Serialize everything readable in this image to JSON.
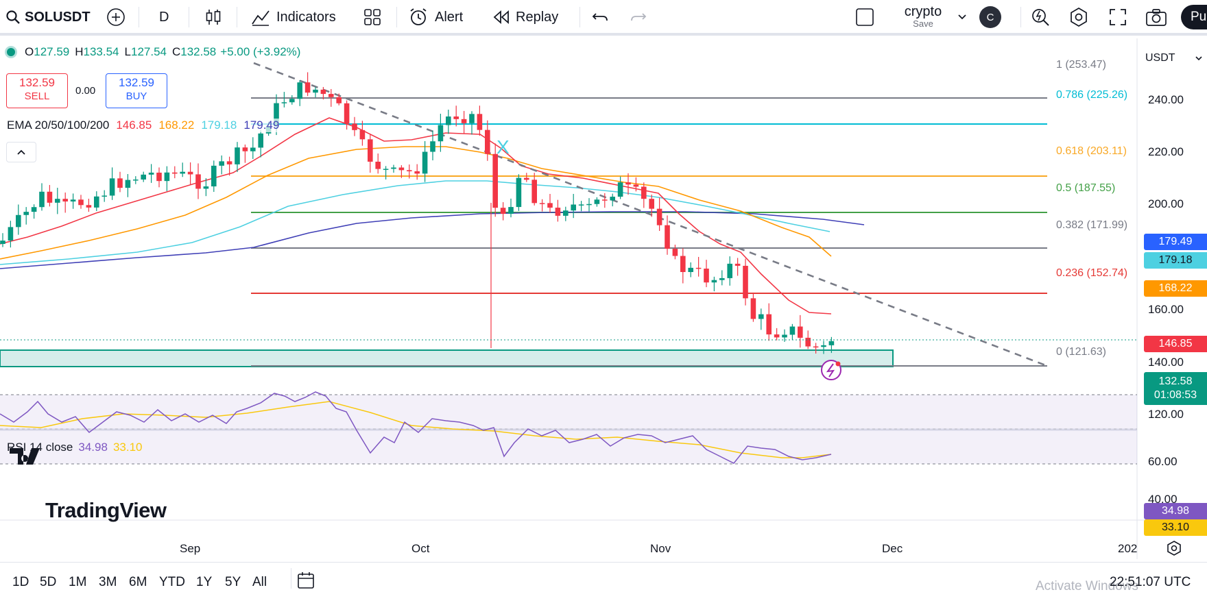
{
  "toolbar": {
    "symbol": "SOLUSDT",
    "interval": "D",
    "indicators_label": "Indicators",
    "alert_label": "Alert",
    "replay_label": "Replay",
    "layout_name": "crypto",
    "layout_save": "Save",
    "avatar_letter": "C",
    "publish_label": "Pu"
  },
  "legend": {
    "o_label": "O",
    "o": "127.59",
    "h_label": "H",
    "h": "133.54",
    "l_label": "L",
    "l": "127.54",
    "c_label": "C",
    "c": "132.58",
    "change": "+5.00 (+3.92%)",
    "sell_price": "132.59",
    "sell_label": "SELL",
    "spread": "0.00",
    "buy_price": "132.59",
    "buy_label": "BUY",
    "ema_title": "EMA 20/50/100/200",
    "ema20": "146.85",
    "ema50": "168.22",
    "ema100": "179.18",
    "ema200": "179.49"
  },
  "currency": "USDT",
  "price_axis": [
    "240.00",
    "220.00",
    "200.00",
    "160.00",
    "140.00",
    "120.00"
  ],
  "fib_levels": [
    {
      "label": "1 (253.47)",
      "color": "#787b86"
    },
    {
      "label": "0.786 (225.26)",
      "color": "#00bcd4"
    },
    {
      "label": "0.618 (203.11)",
      "color": "#f9a825"
    },
    {
      "label": "0.5 (187.55)",
      "color": "#43a047"
    },
    {
      "label": "0.382 (171.99)",
      "color": "#787b86"
    },
    {
      "label": "0.236 (152.74)",
      "color": "#e53935"
    },
    {
      "label": "0 (121.63)",
      "color": "#787b86"
    }
  ],
  "price_tags": {
    "ema200": "179.49",
    "ema100": "179.18",
    "ema50": "168.22",
    "ema20": "146.85",
    "last": "132.58",
    "countdown": "01:08:53"
  },
  "rsi": {
    "title": "RSI 14 close",
    "value": "34.98",
    "ma": "33.10",
    "axis": [
      "60.00",
      "40.00"
    ]
  },
  "time_axis": [
    "Sep",
    "Oct",
    "Nov",
    "Dec",
    "202"
  ],
  "watermark": "TradingView",
  "ranges": [
    "1D",
    "5D",
    "1M",
    "3M",
    "6M",
    "YTD",
    "1Y",
    "5Y",
    "All"
  ],
  "clock": "22:51:07 UTC",
  "activate": "Activate Windows",
  "colors": {
    "up": "#089981",
    "down": "#f23645",
    "ema20": "#f23645",
    "ema50": "#ff9800",
    "ema100": "#4dd0e1",
    "ema200": "#3f3fb6"
  }
}
